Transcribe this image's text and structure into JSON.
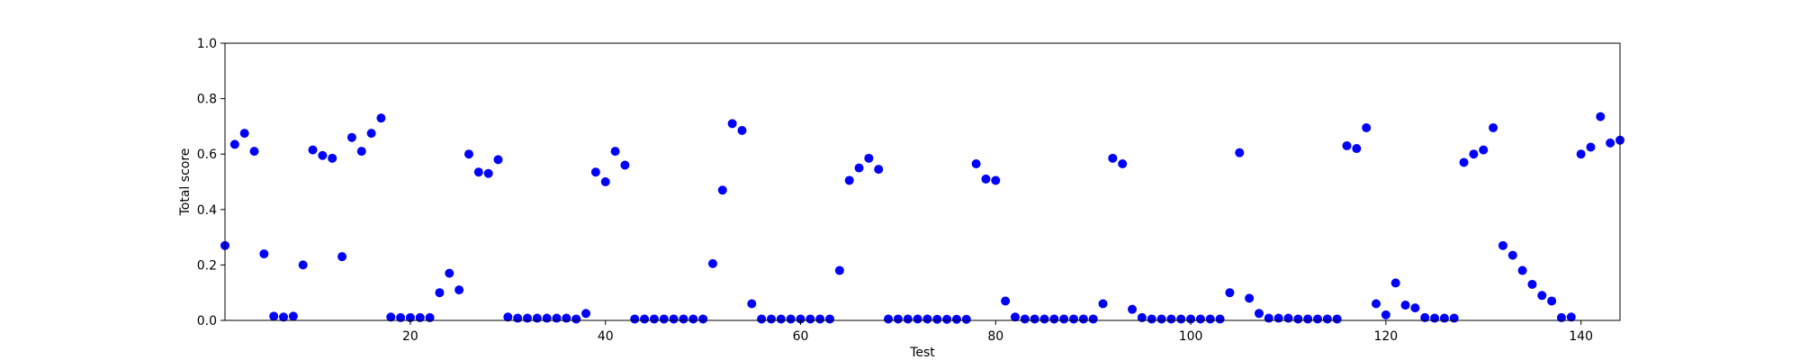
{
  "chart_data": {
    "type": "scatter",
    "title": "",
    "xlabel": "Test",
    "ylabel": "Total score",
    "xlim": [
      1,
      144
    ],
    "ylim": [
      0,
      1.0
    ],
    "grid": false,
    "x_ticks": [
      20,
      40,
      60,
      80,
      100,
      120,
      140
    ],
    "x_tick_labels": [
      "20",
      "40",
      "60",
      "80",
      "100",
      "120",
      "140"
    ],
    "y_ticks": [
      0,
      0.2,
      0.4,
      0.6,
      0.8,
      1.0
    ],
    "y_tick_labels": [
      "0.0",
      "0.2",
      "0.4",
      "0.6",
      "0.8",
      "1.0"
    ],
    "marker_color": "#0000ff",
    "series": [
      {
        "x": [
          1,
          2,
          3,
          4,
          5,
          6,
          7,
          8,
          9,
          10,
          11,
          12,
          13,
          14,
          15,
          16,
          17,
          18,
          19,
          20,
          21,
          22,
          23,
          24,
          25,
          26,
          27,
          28,
          29,
          30,
          31,
          32,
          33,
          34,
          35,
          36,
          37,
          38,
          39,
          40,
          41,
          42,
          43,
          44,
          45,
          46,
          47,
          48,
          49,
          50,
          51,
          52,
          53,
          54,
          55,
          56,
          57,
          58,
          59,
          60,
          61,
          62,
          63,
          64,
          65,
          66,
          67,
          68,
          69,
          70,
          71,
          72,
          73,
          74,
          75,
          76,
          77,
          78,
          79,
          80,
          81,
          82,
          83,
          84,
          85,
          86,
          87,
          88,
          89,
          90,
          91,
          92,
          93,
          94,
          95,
          96,
          97,
          98,
          99,
          100,
          101,
          102,
          103,
          104,
          105,
          106,
          107,
          108,
          109,
          110,
          111,
          112,
          113,
          114,
          115,
          116,
          117,
          118,
          119,
          120,
          121,
          122,
          123,
          124,
          125,
          126,
          127,
          128,
          129,
          130,
          131,
          132,
          133,
          134,
          135,
          136,
          137,
          138,
          139,
          140,
          141,
          142,
          143,
          144
        ],
        "y": [
          0.27,
          0.635,
          0.675,
          0.61,
          0.24,
          0.015,
          0.012,
          0.015,
          0.2,
          0.615,
          0.595,
          0.585,
          0.23,
          0.66,
          0.61,
          0.675,
          0.73,
          0.012,
          0.01,
          0.01,
          0.01,
          0.01,
          0.1,
          0.17,
          0.11,
          0.6,
          0.535,
          0.53,
          0.58,
          0.012,
          0.008,
          0.008,
          0.008,
          0.008,
          0.008,
          0.008,
          0.005,
          0.025,
          0.535,
          0.5,
          0.61,
          0.56,
          0.005,
          0.005,
          0.005,
          0.005,
          0.005,
          0.005,
          0.005,
          0.005,
          0.205,
          0.47,
          0.71,
          0.685,
          0.06,
          0.005,
          0.005,
          0.005,
          0.005,
          0.005,
          0.005,
          0.005,
          0.005,
          0.18,
          0.505,
          0.55,
          0.585,
          0.545,
          0.005,
          0.005,
          0.005,
          0.005,
          0.005,
          0.004,
          0.004,
          0.004,
          0.004,
          0.565,
          0.51,
          0.505,
          0.07,
          0.012,
          0.005,
          0.005,
          0.005,
          0.005,
          0.005,
          0.005,
          0.005,
          0.005,
          0.06,
          0.585,
          0.565,
          0.04,
          0.01,
          0.005,
          0.005,
          0.005,
          0.005,
          0.005,
          0.005,
          0.005,
          0.005,
          0.1,
          0.605,
          0.08,
          0.025,
          0.008,
          0.008,
          0.008,
          0.005,
          0.005,
          0.005,
          0.005,
          0.005,
          0.63,
          0.62,
          0.695,
          0.06,
          0.02,
          0.135,
          0.055,
          0.045,
          0.01,
          0.008,
          0.008,
          0.008,
          0.57,
          0.6,
          0.615,
          0.695,
          0.27,
          0.235,
          0.18,
          0.13,
          0.09,
          0.07,
          0.01,
          0.012,
          0.6,
          0.625,
          0.735,
          0.64,
          0.65
        ]
      }
    ]
  }
}
